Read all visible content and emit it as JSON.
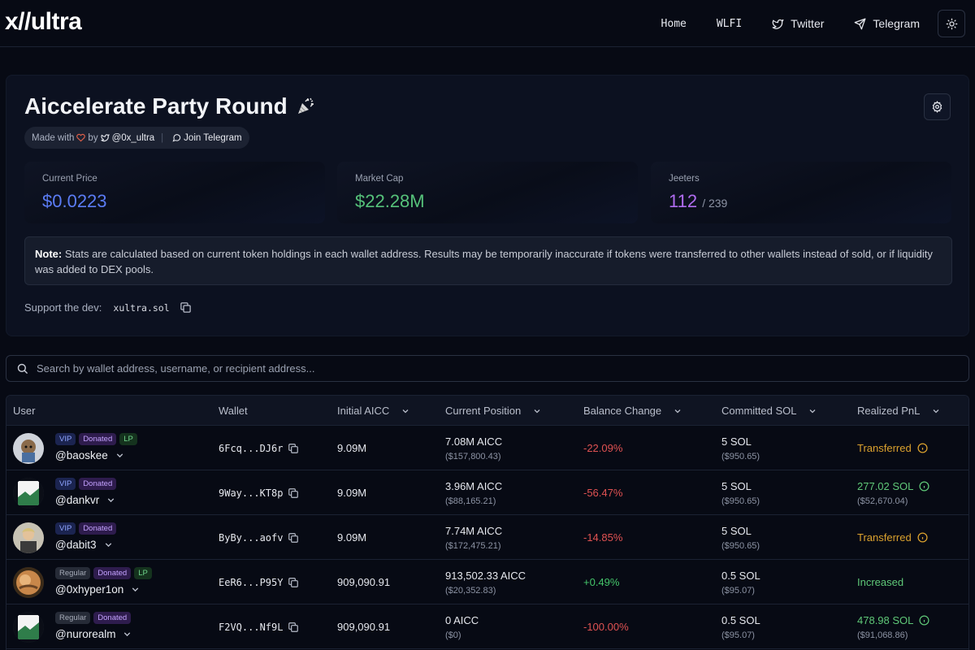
{
  "nav": {
    "logo": "x//ultra",
    "links": {
      "home": "Home",
      "wlfi": "WLFI",
      "twitter": "Twitter",
      "telegram": "Telegram"
    }
  },
  "header": {
    "title": "Aiccelerate Party Round",
    "made_with": "Made with",
    "by": "by",
    "handle": "@0x_ultra",
    "join": "Join Telegram"
  },
  "stats": {
    "price_label": "Current Price",
    "price_value": "$0.0223",
    "mcap_label": "Market Cap",
    "mcap_value": "$22.28M",
    "jeeters_label": "Jeeters",
    "jeeters_value": "112",
    "jeeters_total": "/ 239"
  },
  "note": {
    "label": "Note:",
    "text": " Stats are calculated based on current token holdings in each wallet address. Results may be temporarily inaccurate if tokens were transferred to other wallets instead of sold, or if liquidity was added to DEX pools."
  },
  "support": {
    "label": "Support the dev:",
    "address": "xultra.sol"
  },
  "search": {
    "placeholder": "Search by wallet address, username, or recipient address..."
  },
  "table": {
    "columns": [
      "User",
      "Wallet",
      "Initial AICC",
      "Current Position",
      "Balance Change",
      "Committed SOL",
      "Realized PnL"
    ],
    "rows": [
      {
        "badges": [
          "VIP",
          "Donated",
          "LP"
        ],
        "username": "@baoskee",
        "wallet": "6Fcq...DJ6r",
        "initial": "9.09M",
        "position": "7.08M AICC",
        "position_usd": "($157,800.43)",
        "change": "-22.09%",
        "sol": "5 SOL",
        "sol_usd": "($950.65)",
        "pnl": "Transferred",
        "pnl_usd": ""
      },
      {
        "badges": [
          "VIP",
          "Donated"
        ],
        "username": "@dankvr",
        "wallet": "9Way...KT8p",
        "initial": "9.09M",
        "position": "3.96M AICC",
        "position_usd": "($88,165.21)",
        "change": "-56.47%",
        "sol": "5 SOL",
        "sol_usd": "($950.65)",
        "pnl": "277.02 SOL",
        "pnl_usd": "($52,670.04)"
      },
      {
        "badges": [
          "VIP",
          "Donated"
        ],
        "username": "@dabit3",
        "wallet": "ByBy...aofv",
        "initial": "9.09M",
        "position": "7.74M AICC",
        "position_usd": "($172,475.21)",
        "change": "-14.85%",
        "sol": "5 SOL",
        "sol_usd": "($950.65)",
        "pnl": "Transferred",
        "pnl_usd": ""
      },
      {
        "badges": [
          "Regular",
          "Donated",
          "LP"
        ],
        "username": "@0xhyper1on",
        "wallet": "EeR6...P95Y",
        "initial": "909,090.91",
        "position": "913,502.33 AICC",
        "position_usd": "($20,352.83)",
        "change": "+0.49%",
        "sol": "0.5 SOL",
        "sol_usd": "($95.07)",
        "pnl": "Increased",
        "pnl_usd": ""
      },
      {
        "badges": [
          "Regular",
          "Donated"
        ],
        "username": "@nurorealm",
        "wallet": "F2VQ...Nf9L",
        "initial": "909,090.91",
        "position": "0 AICC",
        "position_usd": "($0)",
        "change": "-100.00%",
        "sol": "0.5 SOL",
        "sol_usd": "($95.07)",
        "pnl": "478.98 SOL",
        "pnl_usd": "($91,068.86)"
      }
    ]
  },
  "colors": {
    "price": "#5b7cf5",
    "mcap": "#56c27a",
    "jeeters": "#b06cf0",
    "negative": "#e05252",
    "positive": "#44c46a",
    "transferred": "#dba22e"
  }
}
